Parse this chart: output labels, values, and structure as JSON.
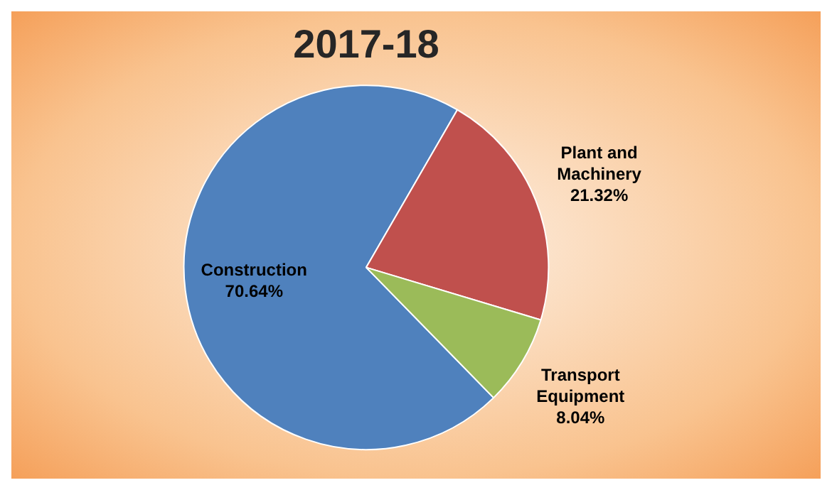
{
  "chart_data": {
    "type": "pie",
    "title": "2017-18",
    "categories": [
      "Construction",
      "Plant and Machinery",
      "Transport Equipment"
    ],
    "values": [
      70.64,
      21.32,
      8.04
    ],
    "colors": [
      "#4f81bd",
      "#c0504d",
      "#9bbb59"
    ],
    "value_labels": [
      "70.64%",
      "21.32%",
      "8.04%"
    ],
    "legend": false
  }
}
